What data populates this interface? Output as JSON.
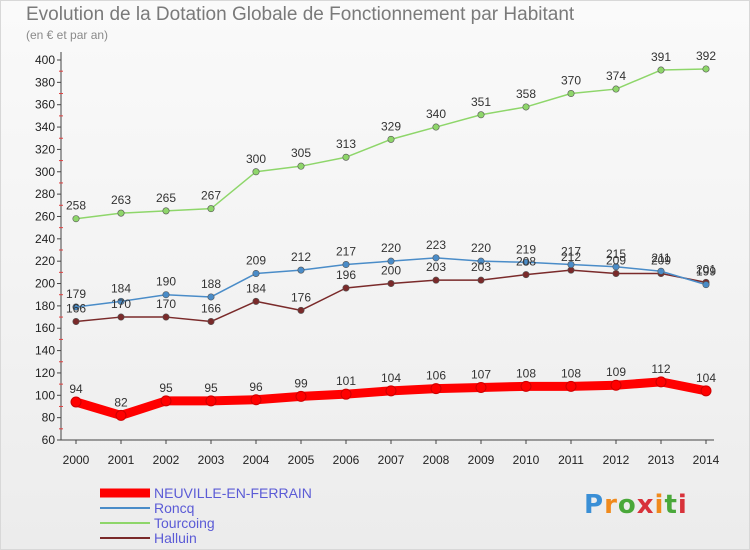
{
  "header": {
    "title": "Evolution de la Dotation Globale de Fonctionnement par Habitant",
    "subtitle": "(en € et par an)"
  },
  "brand": {
    "name": "Proxiti"
  },
  "chart_data": {
    "type": "line",
    "title": "Evolution de la Dotation Globale de Fonctionnement par Habitant",
    "subtitle": "(en € et par an)",
    "xlabel": "",
    "ylabel": "",
    "x": [
      "2000",
      "2001",
      "2002",
      "2003",
      "2004",
      "2005",
      "2006",
      "2007",
      "2008",
      "2009",
      "2010",
      "2011",
      "2012",
      "2013",
      "2014"
    ],
    "ylim": [
      60,
      400
    ],
    "ytick_step": 20,
    "grid": false,
    "legend_position": "bottom-left",
    "series": [
      {
        "name": "NEUVILLE-EN-FERRAIN",
        "color": "#ff0000",
        "values": [
          94,
          82,
          95,
          95,
          96,
          99,
          101,
          104,
          106,
          107,
          108,
          108,
          109,
          112,
          104
        ]
      },
      {
        "name": "Roncq",
        "color": "#4a8cc8",
        "values": [
          179,
          184,
          190,
          188,
          209,
          212,
          217,
          220,
          223,
          220,
          219,
          217,
          215,
          211,
          199
        ]
      },
      {
        "name": "Tourcoing",
        "color": "#8ed66a",
        "values": [
          258,
          263,
          265,
          267,
          300,
          305,
          313,
          329,
          340,
          351,
          358,
          370,
          374,
          391,
          392
        ]
      },
      {
        "name": "Halluin",
        "color": "#7a2a2a",
        "values": [
          166,
          170,
          170,
          166,
          184,
          176,
          196,
          200,
          203,
          203,
          208,
          212,
          209,
          209,
          201
        ]
      }
    ]
  }
}
